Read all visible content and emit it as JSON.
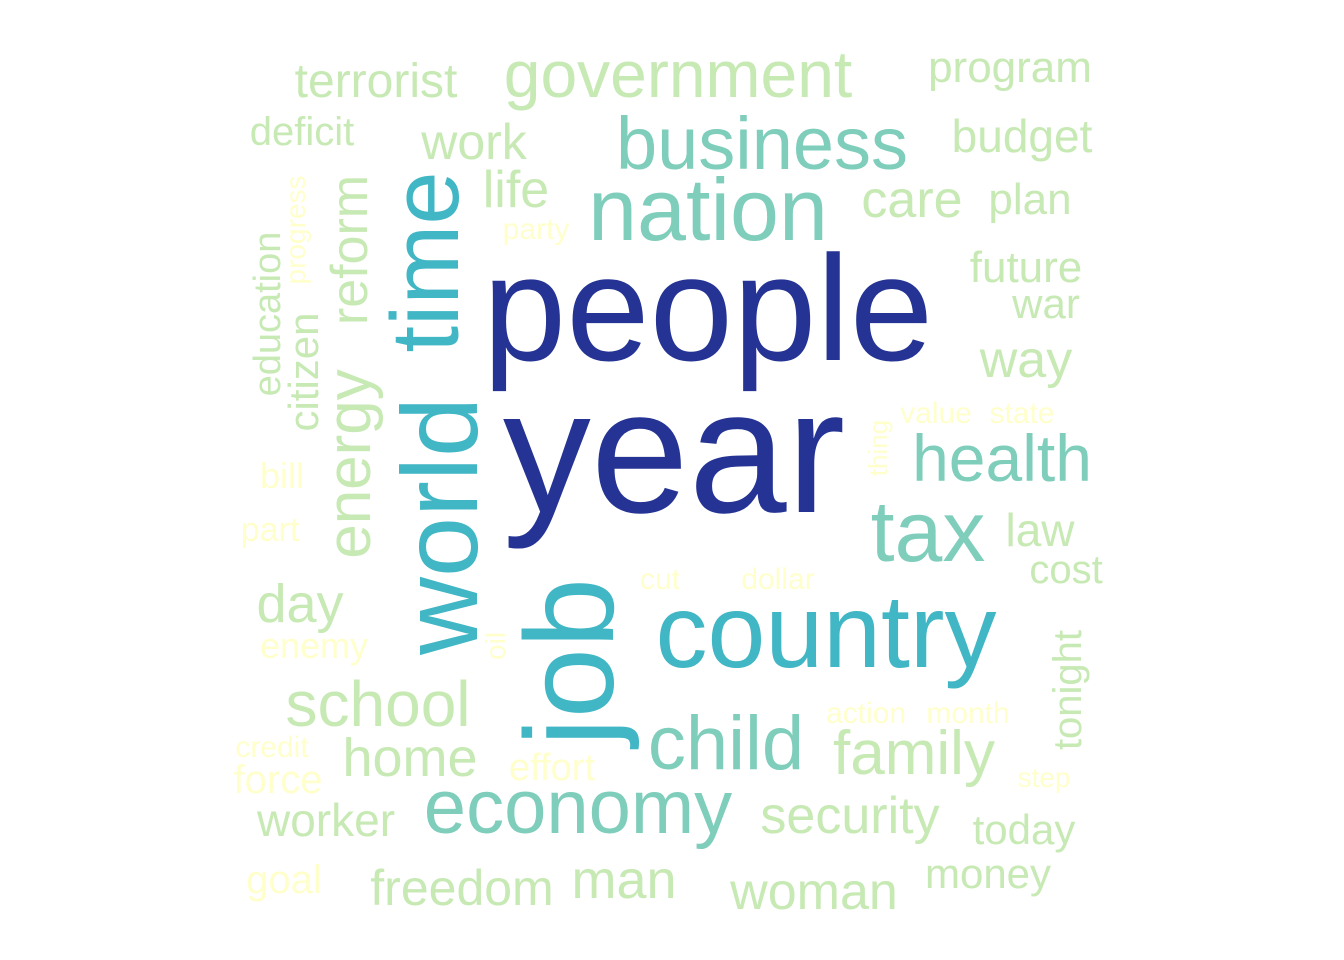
{
  "colors": {
    "tier1": "#253494",
    "tier2": "#41b6c4",
    "tier3": "#7fcdbb",
    "tier4": "#c7e9b4",
    "tier5": "#ffffcc"
  },
  "words": [
    {
      "text": "people",
      "tier": 1
    },
    {
      "text": "year",
      "tier": 1
    },
    {
      "text": "job",
      "tier": 2
    },
    {
      "text": "country",
      "tier": 2
    },
    {
      "text": "world",
      "tier": 2
    },
    {
      "text": "time",
      "tier": 2
    },
    {
      "text": "nation",
      "tier": 3
    },
    {
      "text": "business",
      "tier": 3
    },
    {
      "text": "tax",
      "tier": 3
    },
    {
      "text": "health",
      "tier": 3
    },
    {
      "text": "child",
      "tier": 3
    },
    {
      "text": "economy",
      "tier": 3
    },
    {
      "text": "government",
      "tier": 4
    },
    {
      "text": "terrorist",
      "tier": 4
    },
    {
      "text": "program",
      "tier": 4
    },
    {
      "text": "deficit",
      "tier": 4
    },
    {
      "text": "work",
      "tier": 4
    },
    {
      "text": "budget",
      "tier": 4
    },
    {
      "text": "life",
      "tier": 4
    },
    {
      "text": "care",
      "tier": 4
    },
    {
      "text": "plan",
      "tier": 4
    },
    {
      "text": "future",
      "tier": 4
    },
    {
      "text": "war",
      "tier": 4
    },
    {
      "text": "way",
      "tier": 4
    },
    {
      "text": "reform",
      "tier": 4
    },
    {
      "text": "energy",
      "tier": 4
    },
    {
      "text": "education",
      "tier": 4
    },
    {
      "text": "citizen",
      "tier": 4
    },
    {
      "text": "law",
      "tier": 4
    },
    {
      "text": "cost",
      "tier": 4
    },
    {
      "text": "day",
      "tier": 4
    },
    {
      "text": "school",
      "tier": 4
    },
    {
      "text": "family",
      "tier": 4
    },
    {
      "text": "home",
      "tier": 4
    },
    {
      "text": "tonight",
      "tier": 4
    },
    {
      "text": "security",
      "tier": 4
    },
    {
      "text": "worker",
      "tier": 4
    },
    {
      "text": "today",
      "tier": 4
    },
    {
      "text": "freedom",
      "tier": 4
    },
    {
      "text": "man",
      "tier": 4
    },
    {
      "text": "woman",
      "tier": 4
    },
    {
      "text": "money",
      "tier": 4
    },
    {
      "text": "party",
      "tier": 5
    },
    {
      "text": "progress",
      "tier": 5
    },
    {
      "text": "value",
      "tier": 5
    },
    {
      "text": "state",
      "tier": 5
    },
    {
      "text": "thing",
      "tier": 5
    },
    {
      "text": "bill",
      "tier": 5
    },
    {
      "text": "part",
      "tier": 5
    },
    {
      "text": "cut",
      "tier": 5
    },
    {
      "text": "dollar",
      "tier": 5
    },
    {
      "text": "enemy",
      "tier": 5
    },
    {
      "text": "oil",
      "tier": 5
    },
    {
      "text": "action",
      "tier": 5
    },
    {
      "text": "month",
      "tier": 5
    },
    {
      "text": "credit",
      "tier": 5
    },
    {
      "text": "force",
      "tier": 5
    },
    {
      "text": "effort",
      "tier": 5
    },
    {
      "text": "step",
      "tier": 5
    },
    {
      "text": "goal",
      "tier": 5
    }
  ]
}
